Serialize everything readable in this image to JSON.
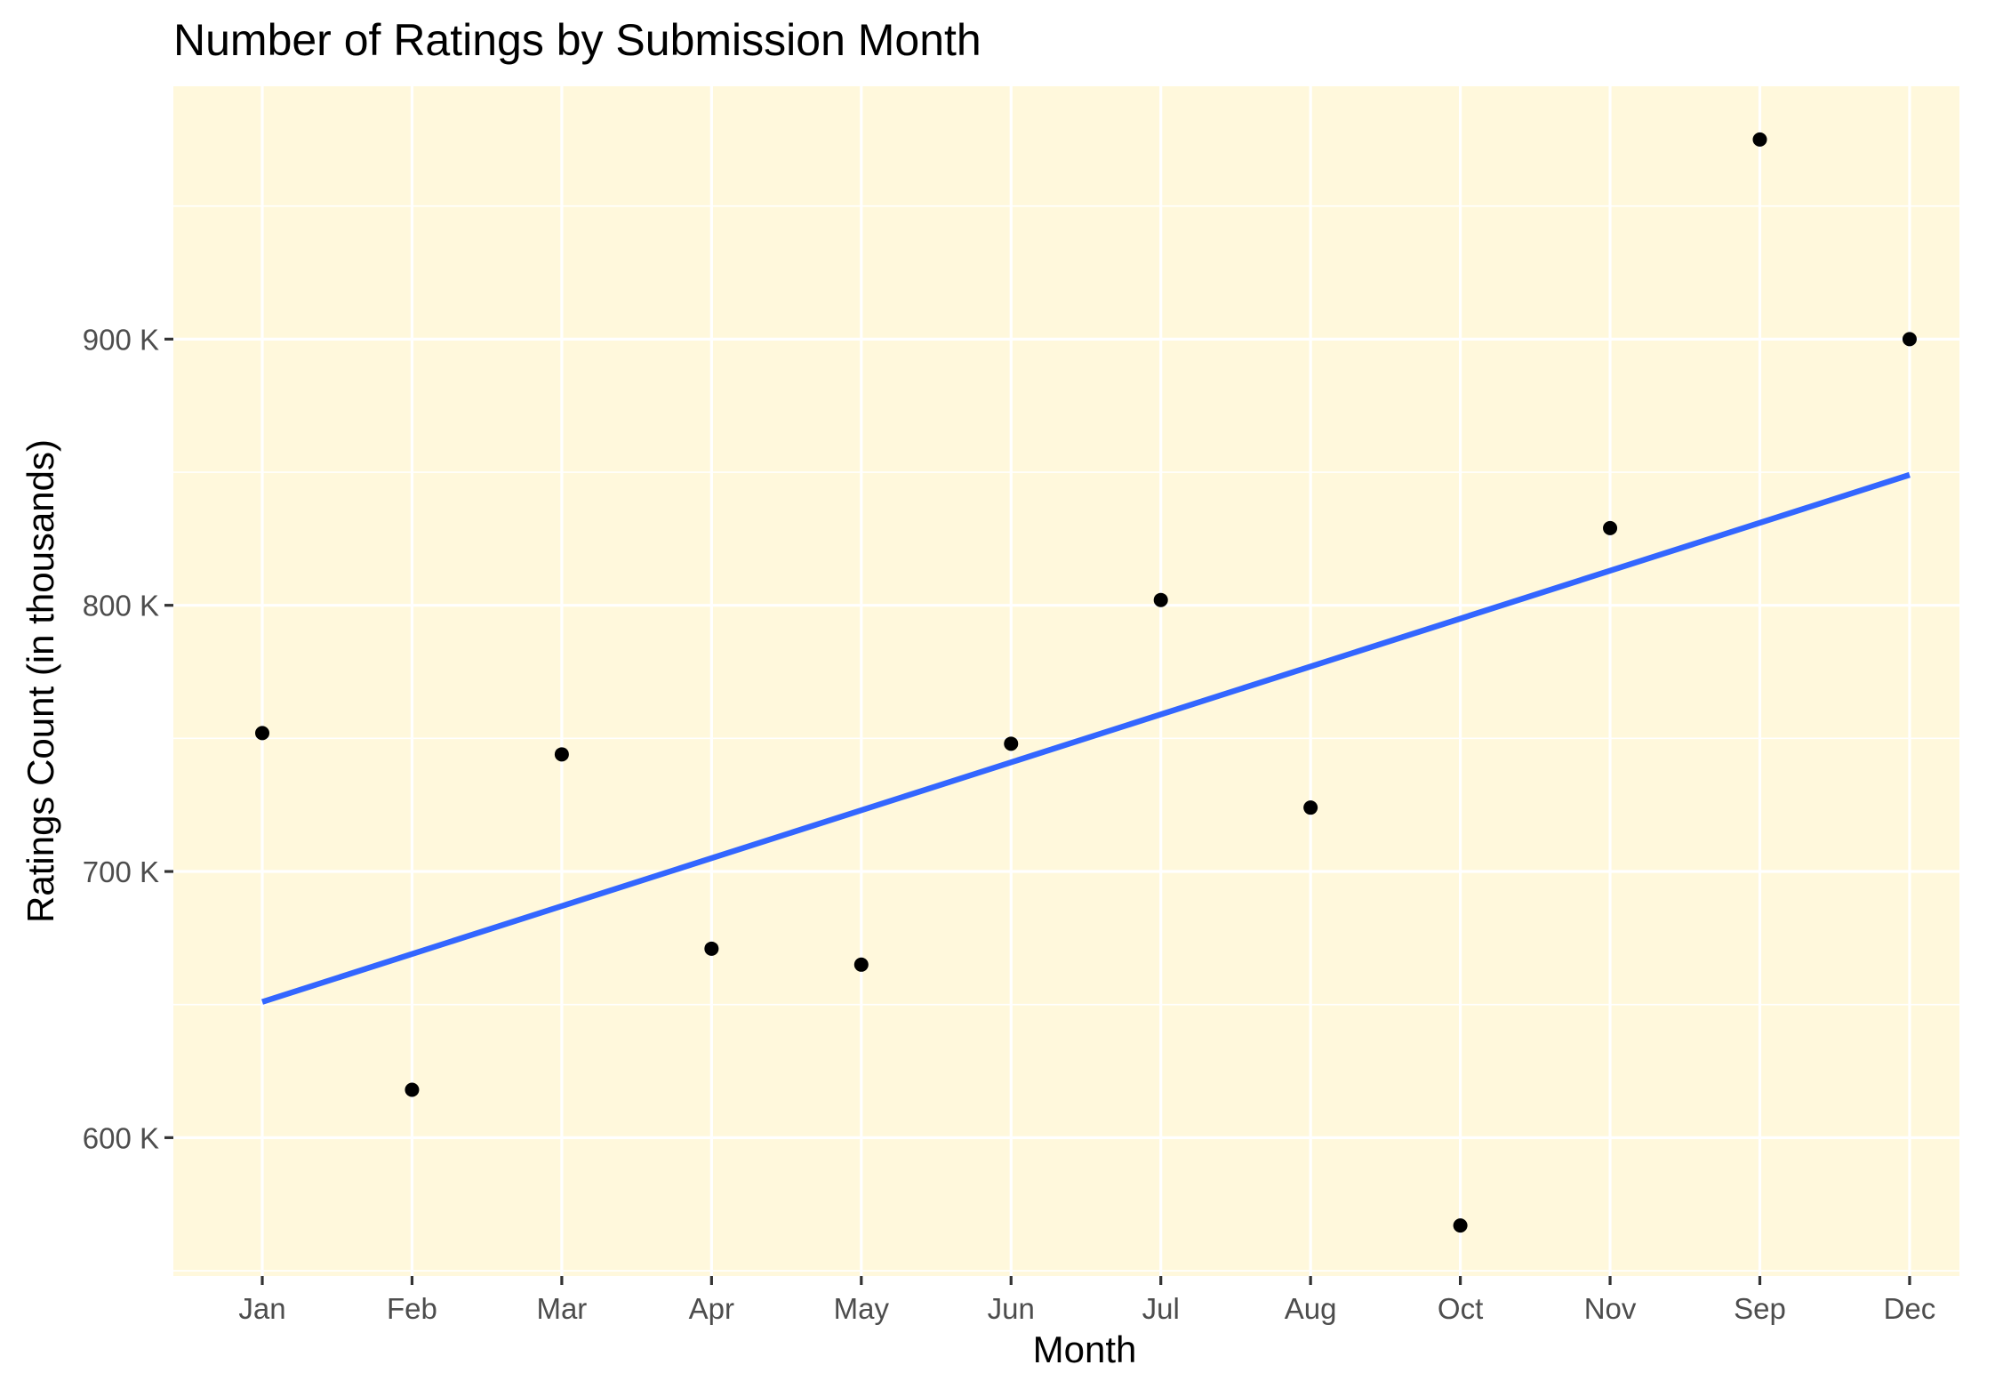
{
  "chart_data": {
    "type": "scatter",
    "title": "Number of Ratings by Submission Month",
    "xlabel": "Month",
    "ylabel": "Ratings Count (in thousands)",
    "categories": [
      "Jan",
      "Feb",
      "Mar",
      "Apr",
      "May",
      "Jun",
      "Jul",
      "Aug",
      "Oct",
      "Nov",
      "Sep",
      "Dec"
    ],
    "series": [
      {
        "values": [
          752,
          618,
          744,
          671,
          665,
          748,
          802,
          724,
          567,
          829,
          975,
          900
        ]
      }
    ],
    "trendline": {
      "type": "linear",
      "color": "#3366ff",
      "start": 651,
      "end": 849
    },
    "y_ticks": [
      600,
      700,
      800,
      900
    ],
    "y_tick_labels": [
      "600 K",
      "700 K",
      "800 K",
      "900 K"
    ],
    "ylim": [
      548,
      995
    ],
    "grid": true,
    "panel_background": "#fff8dc",
    "point_color": "#000000"
  }
}
